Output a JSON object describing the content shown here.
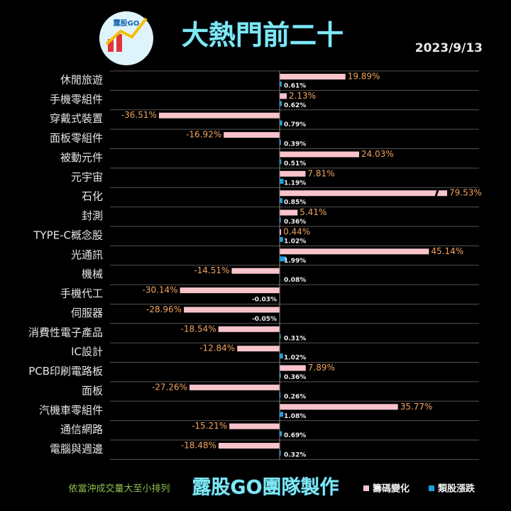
{
  "logo_text": "露股GO",
  "chart_data": {
    "type": "hbar",
    "title": "大熱門前二十",
    "date": "2023/9/13",
    "note": "依當沖成交量大至小排列",
    "footer": "露股GO團隊製作",
    "categories": [
      "休閒旅遊",
      "手機零組件",
      "穿戴式裝置",
      "面板零組件",
      "被動元件",
      "元宇宙",
      "石化",
      "封測",
      "TYPE-C概念股",
      "光通訊",
      "機械",
      "手機代工",
      "伺服器",
      "消費性電子產品",
      "IC設計",
      "PCB印刷電路板",
      "面板",
      "汽機車零組件",
      "通信網路",
      "電腦與週邊"
    ],
    "series": [
      {
        "name": "籌碼變化",
        "color": "#f9c3cc",
        "values": [
          19.89,
          2.13,
          -36.51,
          -16.92,
          24.03,
          7.81,
          79.53,
          5.41,
          0.44,
          45.14,
          -14.51,
          -30.14,
          -28.96,
          -18.54,
          -12.84,
          7.89,
          -27.26,
          35.77,
          -15.21,
          -18.48
        ],
        "value_labels": [
          "19.89%",
          "2.13%",
          "-36.51%",
          "-16.92%",
          "24.03%",
          "7.81%",
          "79.53%",
          "5.41%",
          "0.44%",
          "45.14%",
          "-14.51%",
          "-30.14%",
          "-28.96%",
          "-18.54%",
          "-12.84%",
          "7.89%",
          "-27.26%",
          "35.77%",
          "-15.21%",
          "-18.48%"
        ]
      },
      {
        "name": "類股漲跌",
        "color": "#1ba1e2",
        "values": [
          0.61,
          0.62,
          0.79,
          0.39,
          0.51,
          1.19,
          0.85,
          0.36,
          1.02,
          1.99,
          0.08,
          -0.03,
          -0.05,
          0.31,
          1.02,
          0.36,
          0.26,
          1.08,
          0.69,
          0.32
        ],
        "value_labels": [
          "0.61%",
          "0.62%",
          "0.79%",
          "0.39%",
          "0.51%",
          "1.19%",
          "0.85%",
          "0.36%",
          "1.02%",
          "1.99%",
          "0.08%",
          "-0.03%",
          "-0.05%",
          "0.31%",
          "1.02%",
          "0.36%",
          "0.26%",
          "1.08%",
          "0.69%",
          "0.32%"
        ]
      }
    ],
    "xlim": [
      -51.3,
      60.3
    ]
  }
}
